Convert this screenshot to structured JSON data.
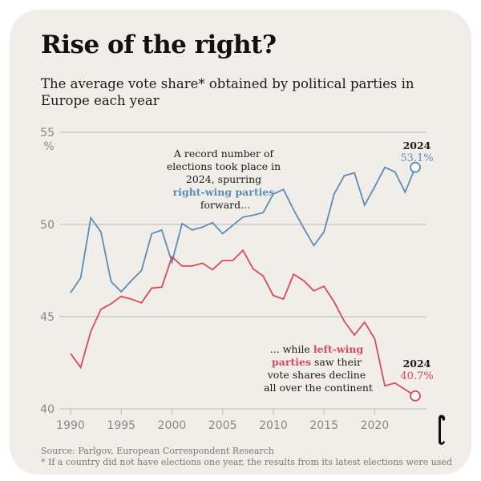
{
  "header": {
    "title": "Rise of the right?",
    "subtitle": "The average vote share* obtained by political parties in Europe each year"
  },
  "colors": {
    "right": "#5b8db8",
    "left": "#d94a5a",
    "grid": "#bdbab6",
    "background": "#f1eeea"
  },
  "annotations": {
    "right_lines": [
      "A record number of",
      "elections took place in",
      "2024, spurring"
    ],
    "right_highlight": "right-wing parties",
    "right_end": "forward...",
    "left_start": "... while ",
    "left_highlight_1": "left-wing",
    "left_highlight_2": "parties",
    "left_after": " saw their",
    "left_lines": [
      "vote shares decline",
      "all over the continent"
    ],
    "right_end_year": "2024",
    "right_end_value": "53.1%",
    "left_end_year": "2024",
    "left_end_value": "40.7%"
  },
  "footer": {
    "source": "Source: Parlgov, European Correspondent Research",
    "note": "* If a country did not have elections one year, the results from its latest elections were used"
  },
  "logo": {
    "icon": "publisher-logo-icon"
  },
  "chart_data": {
    "type": "line",
    "title": "Rise of the right?",
    "subtitle": "The average vote share* obtained by political parties in Europe each year",
    "xlabel": "",
    "ylabel": "%",
    "x": [
      1990,
      1991,
      1992,
      1993,
      1994,
      1995,
      1996,
      1997,
      1998,
      1999,
      2000,
      2001,
      2002,
      2003,
      2004,
      2005,
      2006,
      2007,
      2008,
      2009,
      2010,
      2011,
      2012,
      2013,
      2014,
      2015,
      2016,
      2017,
      2018,
      2019,
      2020,
      2021,
      2022,
      2023,
      2024
    ],
    "xlim": [
      1990,
      2024
    ],
    "ylim": [
      40,
      55
    ],
    "yticks": [
      40,
      45,
      50,
      55
    ],
    "ytick_labels": [
      "40",
      "45",
      "50",
      "55"
    ],
    "ytick_unit": "%",
    "xticks": [
      1990,
      1995,
      2000,
      2005,
      2010,
      2015,
      2020
    ],
    "xtick_labels": [
      "1990",
      "1995",
      "2000",
      "2005",
      "2010",
      "2015",
      "2020"
    ],
    "grid": true,
    "legend": "none (inline annotations)",
    "series": [
      {
        "name": "right-wing parties",
        "color": "#5b8db8",
        "values": [
          46.3,
          47.1,
          50.35,
          49.6,
          46.9,
          46.35,
          46.95,
          47.5,
          49.5,
          49.7,
          47.95,
          50.05,
          49.7,
          49.85,
          50.1,
          49.5,
          49.95,
          50.4,
          50.5,
          50.65,
          51.65,
          51.9,
          50.8,
          49.8,
          48.85,
          49.6,
          51.65,
          52.65,
          52.8,
          51.05,
          52.05,
          53.1,
          52.85,
          51.75,
          53.1
        ]
      },
      {
        "name": "left-wing parties",
        "color": "#d94a5a",
        "values": [
          43.0,
          42.25,
          44.2,
          45.4,
          45.7,
          46.1,
          45.95,
          45.75,
          46.55,
          46.6,
          48.25,
          47.75,
          47.75,
          47.9,
          47.55,
          48.05,
          48.05,
          48.6,
          47.6,
          47.2,
          46.15,
          45.95,
          47.3,
          46.95,
          46.4,
          46.65,
          45.8,
          44.75,
          44.0,
          44.7,
          43.8,
          41.25,
          41.4,
          41.05,
          40.7
        ]
      }
    ],
    "end_markers": [
      {
        "series": "right-wing parties",
        "year": 2024,
        "label": "53.1%"
      },
      {
        "series": "left-wing parties",
        "year": 2024,
        "label": "40.7%"
      }
    ]
  }
}
